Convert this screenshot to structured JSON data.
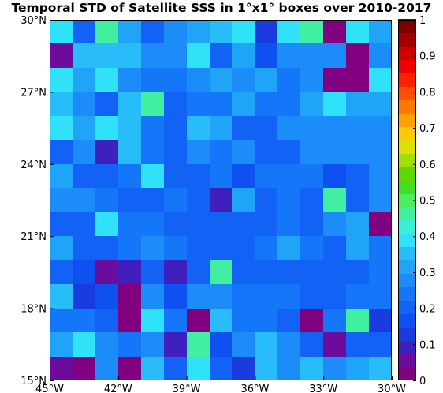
{
  "chart_data": {
    "type": "heatmap",
    "title": "Temporal STD of Satellite SSS in 1°x1° boxes over 2010-2017",
    "x_range": [
      -45,
      -30
    ],
    "y_range": [
      15,
      30
    ],
    "x_ticks": [
      -45,
      -42,
      -39,
      -36,
      -33,
      -30
    ],
    "y_ticks": [
      15,
      18,
      21,
      24,
      27,
      30
    ],
    "x_tick_labels": [
      "45°W",
      "42°W",
      "39°W",
      "36°W",
      "33°W",
      "30°W"
    ],
    "y_tick_labels": [
      "15°N",
      "18°N",
      "21°N",
      "24°N",
      "27°N",
      "30°N"
    ],
    "colorbar": {
      "range": [
        0,
        1
      ],
      "ticks": [
        0,
        0.1,
        0.2,
        0.3,
        0.4,
        0.5,
        0.6,
        0.7,
        0.8,
        0.9,
        1
      ],
      "tick_labels": [
        "0",
        "0.1",
        "0.2",
        "0.3",
        "0.4",
        "0.5",
        "0.6",
        "0.7",
        "0.8",
        "0.9",
        "1"
      ],
      "colors": [
        "#800080",
        "#6b0c9c",
        "#3f1fbd",
        "#1a3cde",
        "#0f50f0",
        "#1263f5",
        "#1476f8",
        "#1c8cf8",
        "#20a4f8",
        "#28bcf8",
        "#30e2f8",
        "#38f0d8",
        "#40f0a0",
        "#48f060",
        "#40e020",
        "#60d800",
        "#a0e000",
        "#e0e000",
        "#ffc800",
        "#ffa000",
        "#ff7800",
        "#ff5000",
        "#ff2000",
        "#f00000",
        "#d00000",
        "#a00000",
        "#7a0000"
      ]
    },
    "grid": {
      "lon_start": -45,
      "lat_start": 15,
      "cell_size_deg": 1,
      "rows_from_south": [
        [
          0.05,
          0.02,
          0.29,
          0.03,
          0.36,
          0.22,
          0.4,
          0.19,
          0.13,
          0.36,
          0.26,
          0.34,
          0.28,
          0.3,
          0.37
        ],
        [
          0.33,
          0.38,
          0.26,
          0.24,
          0.26,
          0.11,
          0.45,
          0.16,
          0.27,
          0.36,
          0.29,
          0.19,
          0.06,
          0.21,
          0.21
        ],
        [
          0.24,
          0.23,
          0.19,
          0.02,
          0.4,
          0.23,
          0.0,
          0.37,
          0.23,
          0.23,
          0.21,
          0.02,
          0.25,
          0.47,
          0.12
        ],
        [
          0.37,
          0.12,
          0.18,
          0.03,
          0.27,
          0.18,
          0.28,
          0.26,
          0.25,
          0.24,
          0.23,
          0.21,
          0.22,
          0.25,
          0.23
        ],
        [
          0.21,
          0.18,
          0.06,
          0.1,
          0.21,
          0.11,
          0.22,
          0.45,
          0.21,
          0.21,
          0.21,
          0.2,
          0.2,
          0.2,
          0.23
        ],
        [
          0.3,
          0.22,
          0.22,
          0.24,
          0.29,
          0.25,
          0.21,
          0.19,
          0.2,
          0.23,
          0.3,
          0.25,
          0.2,
          0.3,
          0.24
        ],
        [
          0.19,
          0.19,
          0.38,
          0.23,
          0.23,
          0.22,
          0.21,
          0.21,
          0.2,
          0.2,
          0.23,
          0.19,
          0.26,
          0.33,
          0.01
        ],
        [
          0.27,
          0.26,
          0.25,
          0.22,
          0.19,
          0.23,
          0.22,
          0.11,
          0.32,
          0.22,
          0.24,
          0.21,
          0.47,
          0.2,
          0.27
        ],
        [
          0.31,
          0.19,
          0.19,
          0.25,
          0.38,
          0.19,
          0.22,
          0.24,
          0.18,
          0.25,
          0.25,
          0.25,
          0.17,
          0.21,
          0.26
        ],
        [
          0.2,
          0.29,
          0.1,
          0.37,
          0.24,
          0.19,
          0.27,
          0.23,
          0.28,
          0.19,
          0.22,
          0.26,
          0.26,
          0.26,
          0.26
        ],
        [
          0.4,
          0.31,
          0.38,
          0.35,
          0.23,
          0.22,
          0.37,
          0.31,
          0.22,
          0.22,
          0.26,
          0.26,
          0.26,
          0.26,
          0.26
        ],
        [
          0.37,
          0.28,
          0.19,
          0.37,
          0.47,
          0.19,
          0.23,
          0.25,
          0.3,
          0.25,
          0.25,
          0.3,
          0.4,
          0.31,
          0.31
        ],
        [
          0.4,
          0.31,
          0.39,
          0.28,
          0.25,
          0.25,
          0.27,
          0.31,
          0.29,
          0.32,
          0.25,
          0.26,
          0.03,
          0.03,
          0.39
        ],
        [
          0.05,
          0.37,
          0.37,
          0.37,
          0.26,
          0.26,
          0.4,
          0.21,
          0.3,
          0.17,
          0.26,
          0.26,
          0.27,
          0.0,
          0.29
        ],
        [
          0.38,
          0.22,
          0.47,
          0.32,
          0.21,
          0.26,
          0.31,
          0.37,
          0.4,
          0.12,
          0.4,
          0.46,
          0.0,
          0.38,
          0.3
        ]
      ]
    }
  }
}
